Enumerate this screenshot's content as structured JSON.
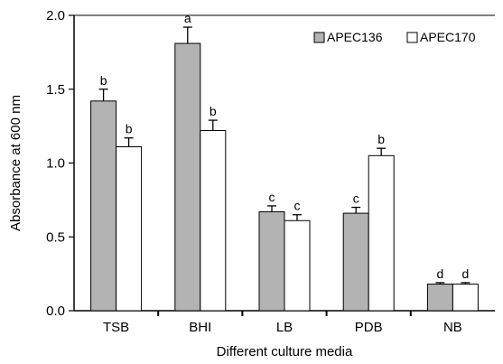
{
  "chart_data": {
    "type": "bar",
    "title": "",
    "xlabel": "Different culture media",
    "ylabel": "Absorbance at 600 nm",
    "ylim": [
      0,
      2.0
    ],
    "yticks": [
      "0.0",
      "0.5",
      "1.0",
      "1.5",
      "2.0"
    ],
    "categories": [
      "TSB",
      "BHI",
      "LB",
      "PDB",
      "NB"
    ],
    "series": [
      {
        "name": "APEC136",
        "color": "#b3b3b3",
        "values": [
          1.42,
          1.81,
          0.67,
          0.66,
          0.18
        ],
        "errors": [
          0.08,
          0.11,
          0.04,
          0.04,
          0.01
        ],
        "labels": [
          "b",
          "a",
          "c",
          "c",
          "d"
        ]
      },
      {
        "name": "APEC170",
        "color": "#ffffff",
        "values": [
          1.11,
          1.22,
          0.61,
          1.05,
          0.18
        ],
        "errors": [
          0.06,
          0.07,
          0.04,
          0.05,
          0.01
        ],
        "labels": [
          "b",
          "b",
          "c",
          "b",
          "d"
        ]
      }
    ],
    "legend_position": "top-right",
    "grid": false
  }
}
